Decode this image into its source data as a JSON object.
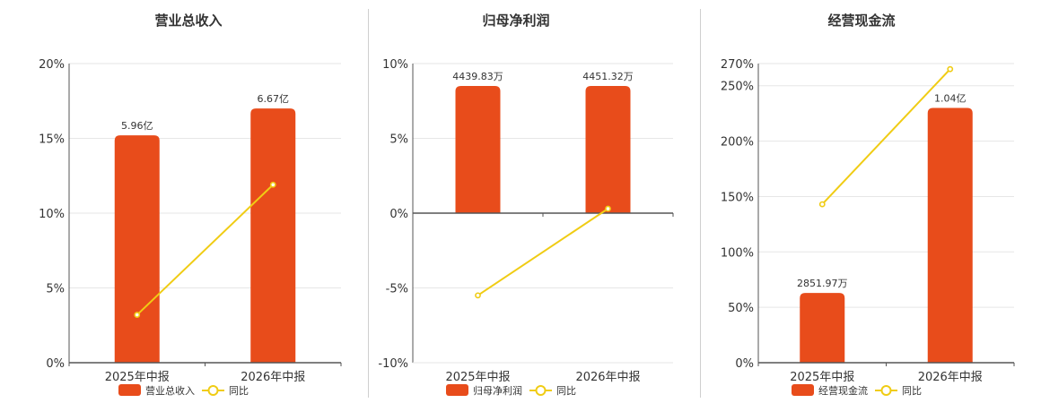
{
  "colors": {
    "bar": "#e84c1b",
    "line": "#f0cc14",
    "grid": "#e6e6e6",
    "axis": "#555555"
  },
  "chart_data": [
    {
      "type": "bar",
      "title": "营业总收入",
      "categories": [
        "2025年中报",
        "2026年中报"
      ],
      "series": [
        {
          "name": "营业总收入",
          "type": "bar",
          "values": [
            15.2,
            17.0
          ],
          "labels": [
            "5.96亿",
            "6.67亿"
          ]
        },
        {
          "name": "同比",
          "type": "line",
          "values": [
            3.2,
            11.9
          ]
        }
      ],
      "yticks": [
        0,
        5,
        10,
        15,
        20
      ],
      "ytick_labels": [
        "0%",
        "5%",
        "10%",
        "15%",
        "20%"
      ],
      "ylim": [
        0,
        20
      ],
      "grid": true,
      "legend": "bottom"
    },
    {
      "type": "bar",
      "title": "归母净利润",
      "categories": [
        "2025年中报",
        "2026年中报"
      ],
      "series": [
        {
          "name": "归母净利润",
          "type": "bar",
          "values": [
            8.5,
            8.5
          ],
          "labels": [
            "4439.83万",
            "4451.32万"
          ]
        },
        {
          "name": "同比",
          "type": "line",
          "values": [
            -5.5,
            0.3
          ]
        }
      ],
      "yticks": [
        -10,
        -5,
        0,
        5,
        10
      ],
      "ytick_labels": [
        "-10%",
        "-5%",
        "0%",
        "5%",
        "10%"
      ],
      "ylim": [
        -10,
        10
      ],
      "grid": true,
      "legend": "bottom"
    },
    {
      "type": "bar",
      "title": "经营现金流",
      "categories": [
        "2025年中报",
        "2026年中报"
      ],
      "series": [
        {
          "name": "经营现金流",
          "type": "bar",
          "values": [
            63,
            230
          ],
          "labels": [
            "2851.97万",
            "1.04亿"
          ]
        },
        {
          "name": "同比",
          "type": "line",
          "values": [
            143,
            265
          ]
        }
      ],
      "yticks": [
        0,
        50,
        100,
        150,
        200,
        250,
        270
      ],
      "ytick_labels": [
        "0%",
        "50%",
        "100%",
        "150%",
        "200%",
        "250%",
        "270%"
      ],
      "ylim": [
        0,
        270
      ],
      "grid": true,
      "legend": "bottom"
    }
  ]
}
